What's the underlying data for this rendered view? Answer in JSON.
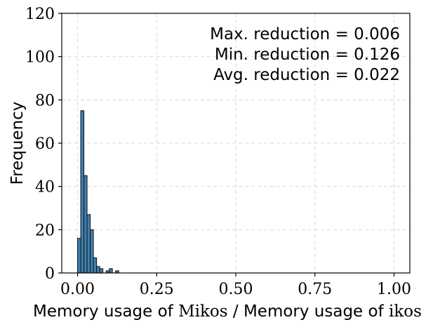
{
  "chart_data": {
    "type": "bar",
    "subtype": "histogram",
    "xlabel": {
      "prefix": "Memory usage of ",
      "tool_a": "Mikos",
      "middle": " / Memory usage of ",
      "tool_b": "ikos"
    },
    "ylabel": "Frequency",
    "xlim": [
      -0.05,
      1.05
    ],
    "ylim": [
      0,
      120
    ],
    "xticks": [
      "0.00",
      "0.25",
      "0.50",
      "0.75",
      "1.00"
    ],
    "xtick_values": [
      0.0,
      0.25,
      0.5,
      0.75,
      1.0
    ],
    "yticks": [
      "0",
      "20",
      "40",
      "60",
      "80",
      "100",
      "120"
    ],
    "ytick_values": [
      0,
      20,
      40,
      60,
      80,
      100,
      120
    ],
    "grid": true,
    "bins": [
      {
        "x0": 0.0,
        "x1": 0.01,
        "count": 16
      },
      {
        "x0": 0.01,
        "x1": 0.02,
        "count": 75
      },
      {
        "x0": 0.02,
        "x1": 0.03,
        "count": 45
      },
      {
        "x0": 0.03,
        "x1": 0.04,
        "count": 27
      },
      {
        "x0": 0.04,
        "x1": 0.05,
        "count": 20
      },
      {
        "x0": 0.05,
        "x1": 0.06,
        "count": 7
      },
      {
        "x0": 0.06,
        "x1": 0.07,
        "count": 3
      },
      {
        "x0": 0.07,
        "x1": 0.08,
        "count": 2
      },
      {
        "x0": 0.09,
        "x1": 0.1,
        "count": 1
      },
      {
        "x0": 0.1,
        "x1": 0.11,
        "count": 2
      },
      {
        "x0": 0.12,
        "x1": 0.13,
        "count": 1
      }
    ],
    "annotations": [
      "Max. reduction = 0.006",
      "Min. reduction = 0.126",
      "Avg. reduction = 0.022"
    ],
    "annotation_position": "top-right",
    "colors": {
      "bar": "#3f7fb0",
      "edge": "#111111"
    }
  }
}
